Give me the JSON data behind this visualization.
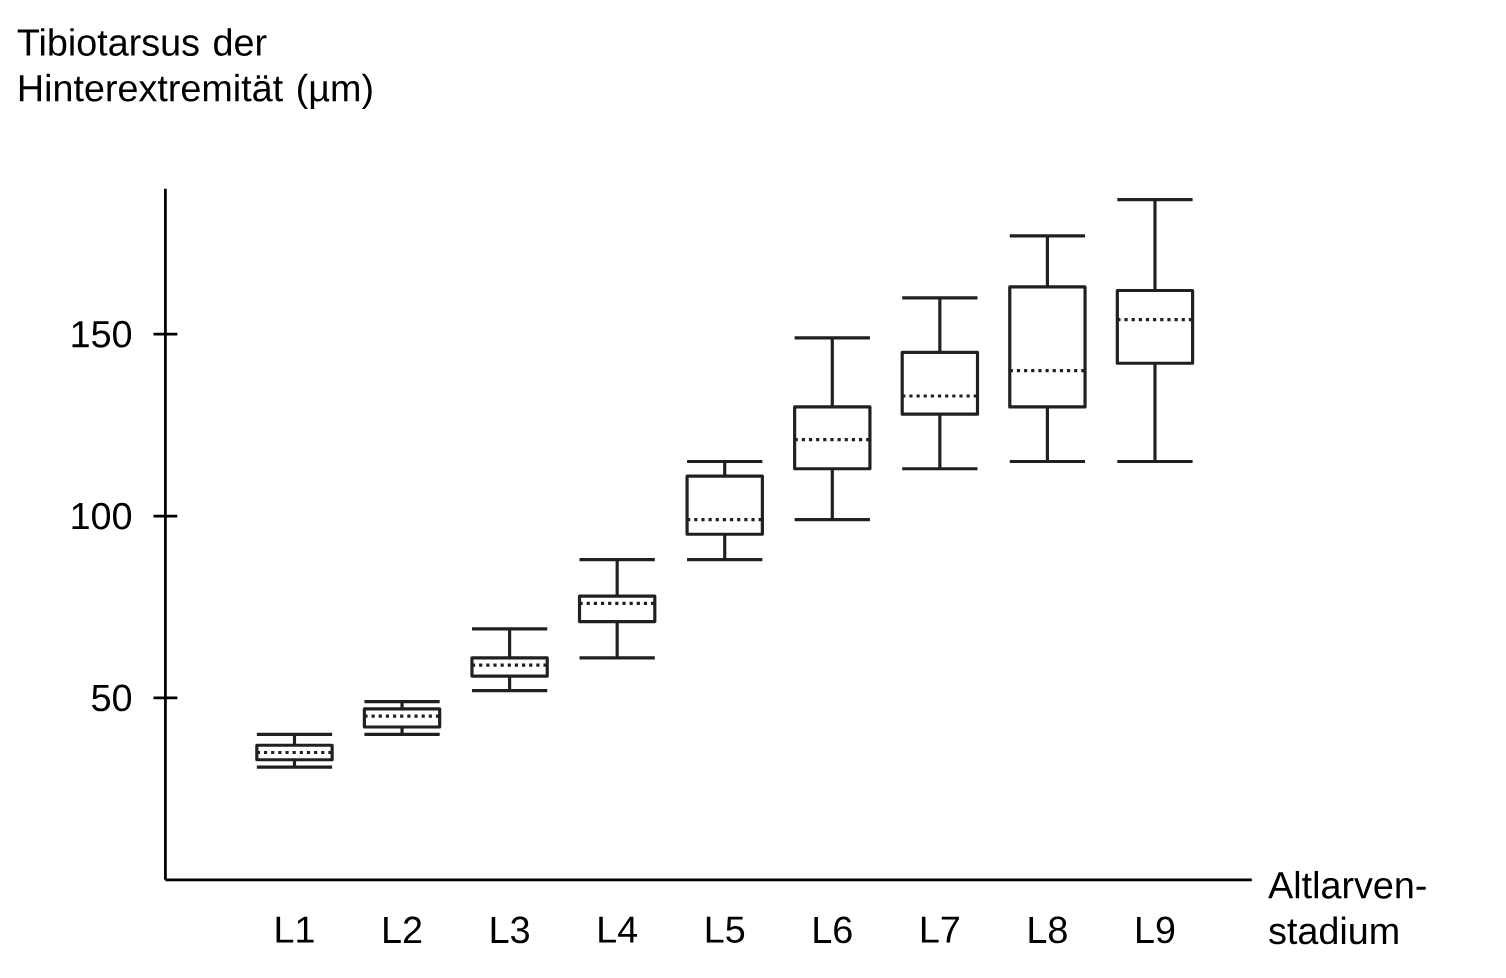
{
  "chart_data": {
    "type": "box",
    "ylabel": "Tibiotarsus der Hinterextremität (µm)",
    "xlabel": "Altlarven-stadium",
    "categories": [
      "L1",
      "L2",
      "L3",
      "L4",
      "L5",
      "L6",
      "L7",
      "L8",
      "L9"
    ],
    "ylim": [
      0,
      190
    ],
    "yticks": [
      50,
      100,
      150
    ],
    "series": [
      {
        "color": "#231f20",
        "boxes": [
          {
            "low": 31,
            "q1": 33,
            "median": 35,
            "q3": 37,
            "high": 40
          },
          {
            "low": 40,
            "q1": 42,
            "median": 45,
            "q3": 47,
            "high": 49
          },
          {
            "low": 52,
            "q1": 56,
            "median": 59,
            "q3": 61,
            "high": 69
          },
          {
            "low": 61,
            "q1": 71,
            "median": 76,
            "q3": 78,
            "high": 88
          },
          {
            "low": 88,
            "q1": 95,
            "median": 99,
            "q3": 111,
            "high": 115
          },
          {
            "low": 99,
            "q1": 113,
            "median": 121,
            "q3": 130,
            "high": 149
          },
          {
            "low": 113,
            "q1": 128,
            "median": 133,
            "q3": 145,
            "high": 160
          },
          {
            "low": 115,
            "q1": 130,
            "median": 140,
            "q3": 163,
            "high": 177
          },
          {
            "low": 115,
            "q1": 142,
            "median": 154,
            "q3": 162,
            "high": 187
          }
        ]
      }
    ]
  }
}
